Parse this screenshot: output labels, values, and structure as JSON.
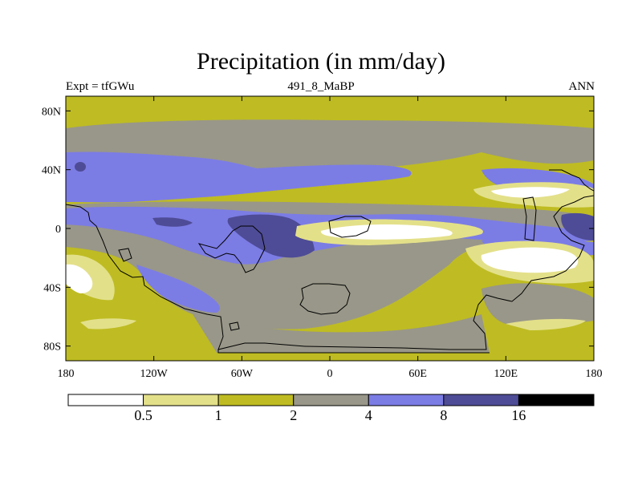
{
  "header": {
    "title": "Precipitation (in mm/day)",
    "left": "Expt = tfGWu",
    "center": "491_8_MaBP",
    "right": "ANN"
  },
  "map": {
    "projection": "cylindrical-equidistant",
    "lon_range": [
      -180,
      180
    ],
    "lat_range": [
      -90,
      90
    ],
    "lon_ticks": [
      {
        "value": -180,
        "label": "180"
      },
      {
        "value": -120,
        "label": "120W"
      },
      {
        "value": -60,
        "label": "60W"
      },
      {
        "value": 0,
        "label": "0"
      },
      {
        "value": 60,
        "label": "60E"
      },
      {
        "value": 120,
        "label": "120E"
      },
      {
        "value": 180,
        "label": "180"
      }
    ],
    "lat_ticks": [
      {
        "value": 80,
        "label": "80N"
      },
      {
        "value": 40,
        "label": "40N"
      },
      {
        "value": 0,
        "label": "0"
      },
      {
        "value": -40,
        "label": "40S"
      },
      {
        "value": -80,
        "label": "80S"
      }
    ],
    "colors": {
      "lt_0_5": "#ffffff",
      "0_5_1": "#e3e08a",
      "1_2": "#bebc22",
      "2_4": "#999789",
      "4_8": "#7c7ce5",
      "8_16": "#4e4c96",
      "gt_16": "#000000",
      "coast": "#000000"
    }
  },
  "colorbar": {
    "labels": [
      "0.5",
      "1",
      "2",
      "4",
      "8",
      "16"
    ],
    "colors": [
      "#ffffff",
      "#e3e08a",
      "#bebc22",
      "#999789",
      "#7c7ce5",
      "#4e4c96",
      "#000000"
    ]
  }
}
